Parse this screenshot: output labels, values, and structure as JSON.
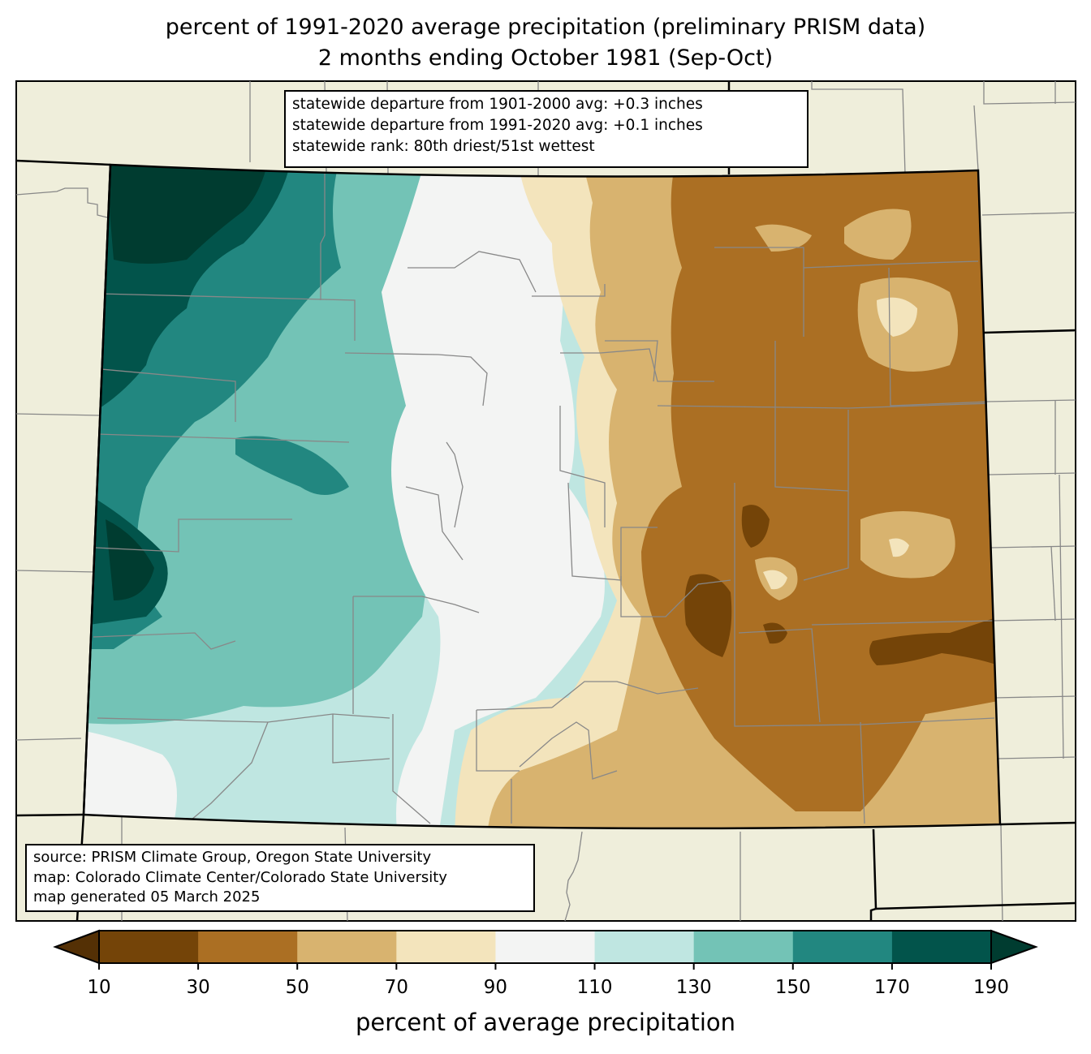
{
  "title": {
    "line1": "percent of 1991-2020 average precipitation (preliminary PRISM data)",
    "line2": "2 months ending October 1981 (Sep-Oct)"
  },
  "stats_box": {
    "line1": "statewide departure from 1901-2000 avg: +0.3 inches",
    "line2": "statewide departure from 1991-2020 avg: +0.1 inches",
    "line3": "statewide rank: 80th driest/51st wettest"
  },
  "source_box": {
    "line1": "source: PRISM Climate Group, Oregon State University",
    "line2": "map: Colorado Climate Center/Colorado State University",
    "line3": "map generated 05 March 2025"
  },
  "colorbar": {
    "label": "percent of average precipitation",
    "ticks": [
      "10",
      "30",
      "50",
      "70",
      "90",
      "110",
      "130",
      "150",
      "170",
      "190"
    ],
    "under_color": "#543005",
    "over_color": "#003c30",
    "bins": [
      {
        "range": "10-30",
        "color": "#744408"
      },
      {
        "range": "30-50",
        "color": "#ab6f23"
      },
      {
        "range": "50-70",
        "color": "#d8b36f"
      },
      {
        "range": "70-90",
        "color": "#f3e4bc"
      },
      {
        "range": "90-110",
        "color": "#f3f4f3"
      },
      {
        "range": "110-130",
        "color": "#bfe6e1"
      },
      {
        "range": "130-150",
        "color": "#73c3b6"
      },
      {
        "range": "150-170",
        "color": "#228780"
      },
      {
        "range": "170-190",
        "color": "#02544b"
      }
    ]
  },
  "map_colors": {
    "background": "#efeedb",
    "county_line": "#888888",
    "state_line": "#000000"
  }
}
